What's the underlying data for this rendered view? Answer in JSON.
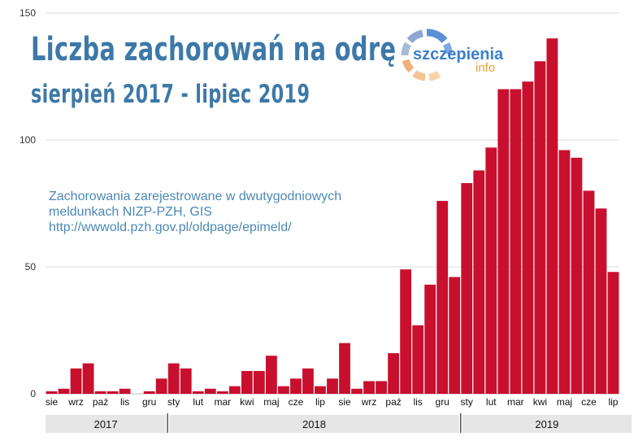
{
  "title": "Liczba zachorowań na odrę",
  "subtitle": "sierpień 2017 - lipiec 2019",
  "note_lines": [
    "Zachorowania zarejestrowane w dwutygodniowych",
    "meldunkach NIZP-PZH, GIS",
    "http://wwwold.pzh.gov.pl/oldpage/epimeld/"
  ],
  "logo": {
    "line1": "szczepienia",
    "line2": "info"
  },
  "colors": {
    "bar": "#c8102e",
    "title": "#3d79a8",
    "note": "#4c88b5",
    "grid": "#dddddd",
    "year_band": "#e6e6e6"
  },
  "chart_data": {
    "type": "bar",
    "ylim": [
      0,
      150
    ],
    "yticks": [
      0,
      50,
      100,
      150
    ],
    "grid": true,
    "values": [
      1,
      2,
      10,
      12,
      1,
      1,
      2,
      0,
      1,
      6,
      12,
      10,
      1,
      2,
      1,
      3,
      9,
      9,
      15,
      3,
      6,
      10,
      3,
      6,
      20,
      2,
      5,
      5,
      16,
      49,
      27,
      43,
      76,
      46,
      83,
      88,
      97,
      120,
      120,
      123,
      131,
      140,
      96,
      93,
      80,
      73,
      48
    ],
    "month_labels": [
      {
        "label": "sie",
        "bar": 0.5
      },
      {
        "label": "wrz",
        "bar": 2.5
      },
      {
        "label": "paź",
        "bar": 4.5
      },
      {
        "label": "lis",
        "bar": 6.5
      },
      {
        "label": "gru",
        "bar": 8.5
      },
      {
        "label": "sty",
        "bar": 10.5
      },
      {
        "label": "lut",
        "bar": 12.5
      },
      {
        "label": "mar",
        "bar": 14.5
      },
      {
        "label": "kwi",
        "bar": 16.5
      },
      {
        "label": "maj",
        "bar": 18.5
      },
      {
        "label": "cze",
        "bar": 20.5
      },
      {
        "label": "lip",
        "bar": 22.5
      },
      {
        "label": "sie",
        "bar": 24.5
      },
      {
        "label": "wrz",
        "bar": 26.5
      },
      {
        "label": "paź",
        "bar": 28.5
      },
      {
        "label": "lis",
        "bar": 30.5
      },
      {
        "label": "gru",
        "bar": 32.5
      },
      {
        "label": "sty",
        "bar": 34.5
      },
      {
        "label": "lut",
        "bar": 36.5
      },
      {
        "label": "mar",
        "bar": 38.5
      },
      {
        "label": "kwi",
        "bar": 40.5
      },
      {
        "label": "maj",
        "bar": 42.5
      },
      {
        "label": "cze",
        "bar": 44.5
      },
      {
        "label": "lip",
        "bar": 46.5
      }
    ],
    "years": [
      {
        "label": "2017",
        "from_bar": 0,
        "to_bar": 10
      },
      {
        "label": "2018",
        "from_bar": 10,
        "to_bar": 34
      },
      {
        "label": "2019",
        "from_bar": 34,
        "to_bar": 48
      }
    ]
  }
}
